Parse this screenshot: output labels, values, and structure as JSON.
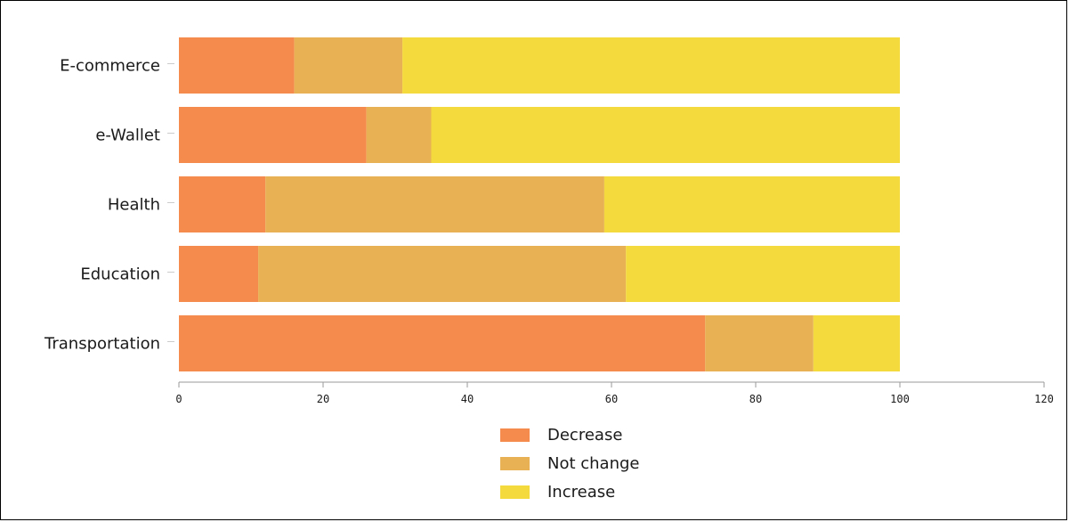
{
  "chart_data": {
    "type": "bar",
    "orientation": "horizontal",
    "stacked": true,
    "title": "",
    "xlabel": "",
    "ylabel": "",
    "categories": [
      "E-commerce",
      "e-Wallet",
      "Health",
      "Education",
      "Transportation"
    ],
    "series": [
      {
        "name": "Decrease",
        "color": "#f58c4e",
        "values": [
          16,
          26,
          12,
          11,
          73
        ]
      },
      {
        "name": "Not change",
        "color": "#e8b153",
        "values": [
          15,
          9,
          47,
          51,
          15
        ]
      },
      {
        "name": "Increase",
        "color": "#f4da3c",
        "values": [
          69,
          65,
          41,
          38,
          12
        ]
      }
    ],
    "xlim": [
      0,
      120
    ],
    "xticks": [
      0,
      20,
      40,
      60,
      80,
      100,
      120
    ],
    "xtick_labels": [
      "0",
      "20",
      "40",
      "60",
      "80",
      "100",
      "120"
    ],
    "grid": false,
    "legend_position": "bottom-center"
  }
}
